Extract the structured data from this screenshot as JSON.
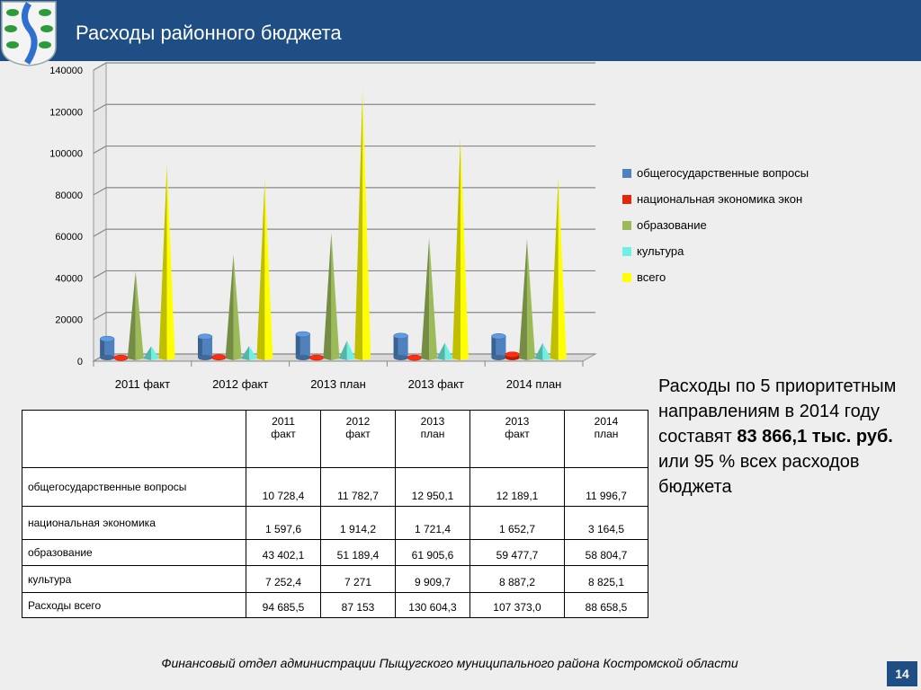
{
  "header": {
    "title": "Расходы районного бюджета"
  },
  "chart_data": {
    "type": "bar",
    "categories": [
      "2011 факт",
      "2012 факт",
      "2013 план",
      "2013 факт",
      "2014 план"
    ],
    "ylim": [
      0,
      140000
    ],
    "yticks": [
      0,
      20000,
      40000,
      60000,
      80000,
      100000,
      120000,
      140000
    ],
    "grid": true,
    "legend_position": "right",
    "series": [
      {
        "name": "общегосударственные вопросы",
        "color": "#4f81bd",
        "shape": "cylinder",
        "values": [
          10728.4,
          11782.7,
          12950.1,
          12189.1,
          11996.7
        ]
      },
      {
        "name": "национальная экономика экон",
        "color": "#e3260c",
        "shape": "cylinder",
        "values": [
          1597.6,
          1914.2,
          1721.4,
          1652.7,
          3164.5
        ]
      },
      {
        "name": "образование",
        "color": "#9bbb59",
        "shape": "cone",
        "values": [
          43402.1,
          51189.4,
          61905.6,
          59477.7,
          58804.7
        ]
      },
      {
        "name": "культура",
        "color": "#70f0e0",
        "shape": "cone",
        "values": [
          7252.4,
          7271,
          9909.7,
          8887.2,
          8825.1
        ]
      },
      {
        "name": "всего",
        "color": "#ffff00",
        "shape": "cone",
        "values": [
          94685.5,
          87153,
          130604.3,
          107373.0,
          88658.5
        ]
      }
    ]
  },
  "table": {
    "headers": [
      [
        "2011",
        "факт"
      ],
      [
        "2012",
        "факт"
      ],
      [
        "2013",
        "план"
      ],
      [
        "2013",
        "факт"
      ],
      [
        "2014",
        "план"
      ]
    ],
    "rows": [
      {
        "label": "общегосударственные вопросы",
        "values": [
          "10 728,4",
          "11 782,7",
          "12 950,1",
          "12 189,1",
          "11 996,7"
        ]
      },
      {
        "label": "национальная экономика",
        "values": [
          "1 597,6",
          "1 914,2",
          "1 721,4",
          "1 652,7",
          "3 164,5"
        ]
      },
      {
        "label": "образование",
        "values": [
          "43 402,1",
          "51 189,4",
          "61 905,6",
          "59 477,7",
          "58 804,7"
        ]
      },
      {
        "label": "культура",
        "values": [
          "7 252,4",
          "7 271",
          "9 909,7",
          "8 887,2",
          "8 825,1"
        ]
      },
      {
        "label": "Расходы всего",
        "values": [
          "94 685,5",
          "87 153",
          "130 604,3",
          "107 373,0",
          "88 658,5"
        ]
      }
    ]
  },
  "side_text": {
    "part1": "Расходы по 5 приоритетным направлениям в 2014 году составят ",
    "bold": "83 866,1 тыс. руб.",
    "part2": " или 95 % всех расходов бюджета"
  },
  "footer": {
    "text": "Финансовый отдел администрации Пыщугского  муниципального района Костромской области"
  },
  "page_number": "14"
}
